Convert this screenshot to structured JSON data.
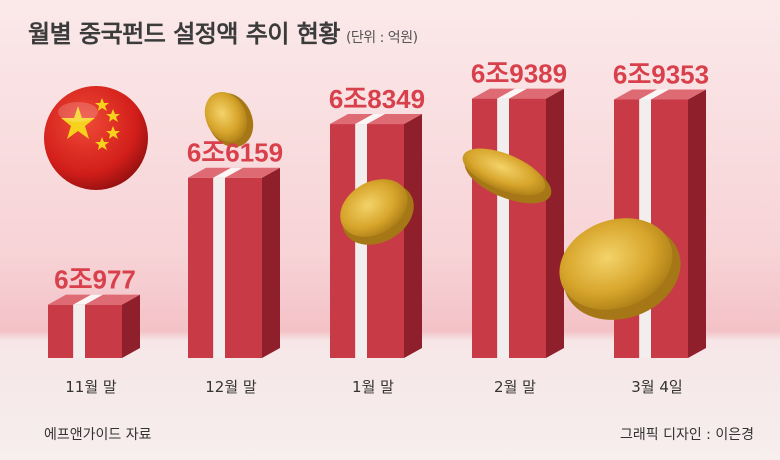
{
  "title": "월별 중국펀드 설정액 추이 현황",
  "unit": "(단위 : 억원)",
  "source": "에프앤가이드 자료",
  "credit": "그래픽 디자인 : 이은경",
  "colors": {
    "bar_front": "#c93a47",
    "bar_side": "#8e1f2b",
    "bar_top": "#de6b73",
    "ribbon": "#f3eeee",
    "value_label": "#d8414b",
    "coin": "#d4a62a",
    "flag_red": "#d8201d",
    "flag_star": "#f6d21c"
  },
  "chart_data": {
    "type": "bar",
    "title": "월별 중국펀드 설정액 추이 현황",
    "unit": "억원",
    "categories": [
      "11월 말",
      "12월 말",
      "1월 말",
      "2월 말",
      "3월 4일"
    ],
    "values": [
      60977,
      66159,
      68349,
      69389,
      69353
    ],
    "value_labels": [
      "6조977",
      "6조6159",
      "6조8349",
      "6조9389",
      "6조9353"
    ],
    "decorations": [
      "china-flag-icon",
      "gold-coin-icon"
    ]
  }
}
